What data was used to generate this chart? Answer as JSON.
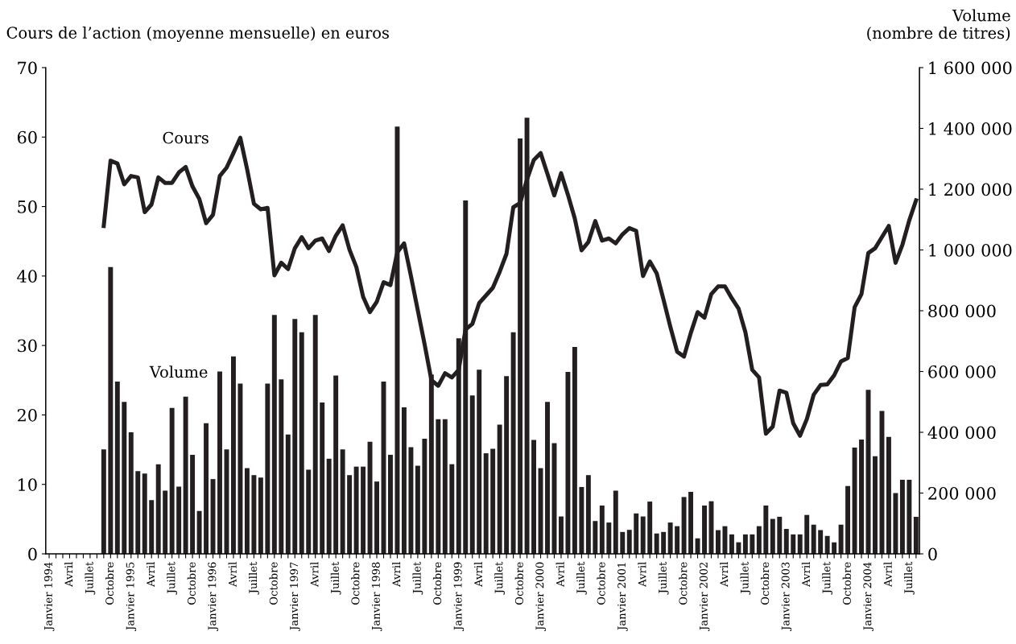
{
  "chart_data": {
    "type": "bar",
    "ylabel": "Cours de l’action (moyenne mensuelle) en euros",
    "y2label": "Volume\n(nombre de titres)",
    "categories": [
      "Janvier 1994",
      null,
      null,
      "Avril",
      null,
      null,
      "Juillet",
      null,
      null,
      "Octobre",
      null,
      null,
      "Janvier 1995",
      null,
      null,
      "Avril",
      null,
      null,
      "Juillet",
      null,
      null,
      "Octobre",
      null,
      null,
      "Janvier 1996",
      null,
      null,
      "Avril",
      null,
      null,
      "Juillet",
      null,
      null,
      "Octobre",
      null,
      null,
      "Janvier 1997",
      null,
      null,
      "Avril",
      null,
      null,
      "Juillet",
      null,
      null,
      "Octobre",
      null,
      null,
      "Janvier 1998",
      null,
      null,
      "Avril",
      null,
      null,
      "Juillet",
      null,
      null,
      "Octobre",
      null,
      null,
      "Janvier 1999",
      null,
      null,
      "Avril",
      null,
      null,
      "Juillet",
      null,
      null,
      "Octobre",
      null,
      null,
      "Janvier 2000",
      null,
      null,
      "Avril",
      null,
      null,
      "Juillet",
      null,
      null,
      "Octobre",
      null,
      null,
      "Janvier 2001",
      null,
      null,
      "Avril",
      null,
      null,
      "Juillet",
      null,
      null,
      "Octobre",
      null,
      null,
      "Janvier 2002",
      null,
      null,
      "Avril",
      null,
      null,
      "Juillet",
      null,
      null,
      "Octobre",
      null,
      null,
      "Janvier 2003",
      null,
      null,
      "Avril",
      null,
      null,
      "Juillet",
      null,
      null,
      "Octobre",
      null,
      null,
      "Janvier 2004",
      null,
      null,
      "Avril",
      null,
      null,
      "Juillet",
      null
    ],
    "series": [
      {
        "name": "Volume",
        "axis": "y2",
        "color": "#231f20",
        "values": [
          null,
          null,
          null,
          null,
          null,
          null,
          null,
          null,
          344000,
          944000,
          567000,
          500000,
          400000,
          272000,
          264000,
          177000,
          295000,
          208000,
          480000,
          221000,
          517000,
          326000,
          141000,
          430000,
          246000,
          600000,
          344000,
          650000,
          560000,
          282000,
          259000,
          251000,
          560000,
          786000,
          574000,
          393000,
          773000,
          729000,
          277000,
          786000,
          498000,
          313000,
          587000,
          344000,
          259000,
          287000,
          287000,
          369000,
          238000,
          567000,
          326000,
          1406000,
          482000,
          351000,
          290000,
          379000,
          590000,
          443000,
          443000,
          295000,
          709000,
          1163000,
          521000,
          606000,
          331000,
          346000,
          425000,
          585000,
          729000,
          1367000,
          1435000,
          375000,
          282000,
          500000,
          364000,
          123000,
          599000,
          681000,
          220000,
          259000,
          108000,
          159000,
          103000,
          208000,
          72000,
          79000,
          133000,
          123000,
          172000,
          67000,
          72000,
          103000,
          91000,
          187000,
          204000,
          51000,
          159000,
          173000,
          78000,
          91000,
          64000,
          38000,
          64000,
          64000,
          91000,
          159000,
          115000,
          122000,
          82000,
          64000,
          64000,
          128000,
          96000,
          78000,
          59000,
          38000,
          96000,
          223000,
          350000,
          376000,
          540000,
          321000,
          470000,
          385000,
          200000,
          244000,
          244000,
          122000
        ]
      },
      {
        "name": "Cours",
        "type": "line",
        "axis": "y",
        "color": "#231f20",
        "values": [
          null,
          null,
          null,
          null,
          null,
          null,
          null,
          null,
          47.2,
          56.6,
          56.2,
          53.2,
          54.4,
          54.2,
          49.2,
          50.3,
          54.2,
          53.4,
          53.4,
          54.9,
          55.7,
          52.9,
          51.1,
          47.6,
          48.8,
          54.4,
          55.6,
          57.7,
          59.9,
          55.4,
          50.4,
          49.6,
          49.8,
          40.1,
          41.9,
          41.0,
          44.0,
          45.6,
          44.0,
          45.1,
          45.4,
          43.6,
          45.8,
          47.3,
          43.8,
          41.3,
          37.0,
          34.8,
          36.3,
          39.1,
          38.7,
          43.4,
          44.7,
          40.0,
          35.1,
          30.2,
          25.0,
          24.2,
          26.0,
          25.4,
          26.5,
          32.3,
          33.1,
          36.1,
          37.2,
          38.3,
          40.6,
          43.2,
          49.9,
          50.5,
          53.9,
          56.7,
          57.7,
          54.7,
          51.6,
          54.8,
          51.7,
          48.3,
          43.7,
          44.9,
          47.9,
          45.1,
          45.4,
          44.7,
          46.0,
          46.9,
          46.5,
          40.0,
          42.1,
          40.4,
          36.6,
          32.7,
          29.1,
          28.4,
          31.8,
          34.8,
          34.0,
          37.4,
          38.5,
          38.5,
          36.8,
          35.3,
          31.9,
          26.5,
          25.4,
          17.3,
          18.3,
          23.5,
          23.2,
          18.8,
          17.0,
          19.4,
          22.9,
          24.3,
          24.4,
          25.7,
          27.7,
          28.2,
          35.5,
          37.4,
          43.3,
          44.0,
          45.6,
          47.2,
          41.9,
          44.5,
          48.0,
          50.9
        ]
      }
    ],
    "ylim": [
      0,
      70
    ],
    "yticks": [
      0,
      10,
      20,
      30,
      40,
      50,
      60,
      70
    ],
    "y2lim": [
      0,
      1600000
    ],
    "y2ticks": [
      0,
      {
        "value": 200000,
        "label": "200 000"
      },
      {
        "value": 400000,
        "label": "400 000"
      },
      {
        "value": 600000,
        "label": "600 000"
      },
      {
        "value": 800000,
        "label": "800 000"
      },
      {
        "value": 1000000,
        "label": "1 000 000"
      },
      {
        "value": 1200000,
        "label": "1 200 000"
      },
      {
        "value": 1400000,
        "label": "1 400 000"
      },
      {
        "value": 1600000,
        "label": "1 600 000"
      }
    ],
    "grid": false,
    "legend": false,
    "marker": "none",
    "line_style": "solid"
  }
}
